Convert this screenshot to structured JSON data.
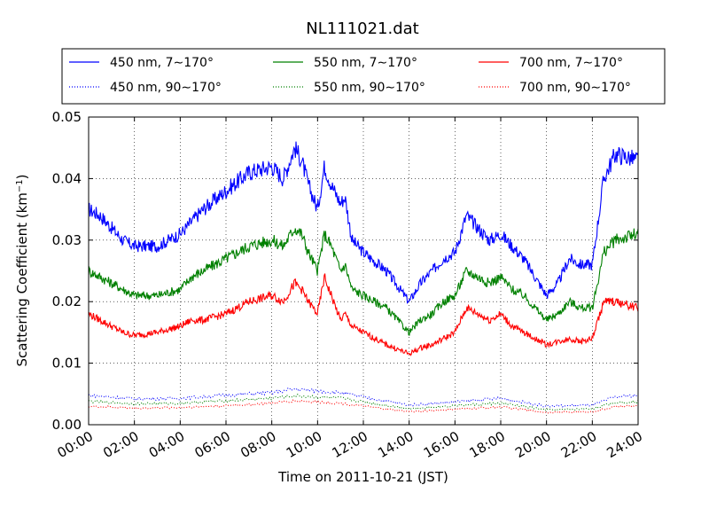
{
  "chart_data": {
    "type": "line",
    "title": "NL111021.dat",
    "xlabel": "Time on 2011-10-21 (JST)",
    "ylabel": "Scattering Coefficient (km",
    "ylabel_sup": "−1",
    "ylabel_end": ")",
    "xlim": [
      0,
      24
    ],
    "ylim": [
      0,
      0.05
    ],
    "x_ticks": [
      0,
      2,
      4,
      6,
      8,
      10,
      12,
      14,
      16,
      18,
      20,
      22,
      24
    ],
    "x_tick_labels": [
      "00:00",
      "02:00",
      "04:00",
      "06:00",
      "08:00",
      "10:00",
      "12:00",
      "14:00",
      "16:00",
      "18:00",
      "20:00",
      "22:00",
      "24:00"
    ],
    "y_ticks": [
      0,
      0.01,
      0.02,
      0.03,
      0.04,
      0.05
    ],
    "y_tick_labels": [
      "0.00",
      "0.01",
      "0.02",
      "0.03",
      "0.04",
      "0.05"
    ],
    "grid": true,
    "legend_placement": "top, above plot, 3 columns",
    "series": [
      {
        "name": "450 nm, 7∼170°",
        "color": "#0000ff",
        "style": "solid",
        "x": [
          0,
          0.5,
          1,
          1.5,
          2,
          3,
          4,
          4.5,
          5,
          6,
          7,
          8,
          8.5,
          9,
          9.3,
          9.6,
          10,
          10.3,
          10.6,
          11,
          11.2,
          11.5,
          12,
          13,
          14,
          14.5,
          15,
          15.5,
          16,
          16.5,
          17,
          17.5,
          18,
          18.5,
          19,
          20,
          20.5,
          21,
          21.5,
          22,
          22.5,
          23,
          24
        ],
        "y": [
          0.035,
          0.034,
          0.032,
          0.03,
          0.029,
          0.029,
          0.031,
          0.033,
          0.035,
          0.038,
          0.041,
          0.042,
          0.04,
          0.045,
          0.043,
          0.039,
          0.035,
          0.042,
          0.039,
          0.036,
          0.037,
          0.03,
          0.028,
          0.025,
          0.02,
          0.023,
          0.025,
          0.027,
          0.028,
          0.034,
          0.032,
          0.03,
          0.031,
          0.029,
          0.027,
          0.021,
          0.023,
          0.027,
          0.026,
          0.026,
          0.04,
          0.044,
          0.043
        ]
      },
      {
        "name": "550 nm, 7∼170°",
        "color": "#008000",
        "style": "solid",
        "x": [
          0,
          0.5,
          1,
          1.5,
          2,
          3,
          4,
          4.5,
          5,
          6,
          7,
          8,
          8.5,
          9,
          9.3,
          9.6,
          10,
          10.3,
          10.6,
          11,
          11.2,
          11.5,
          12,
          13,
          14,
          14.5,
          15,
          15.5,
          16,
          16.5,
          17,
          17.5,
          18,
          18.5,
          19,
          20,
          20.5,
          21,
          21.5,
          22,
          22.5,
          23,
          24
        ],
        "y": [
          0.025,
          0.024,
          0.023,
          0.022,
          0.021,
          0.021,
          0.022,
          0.024,
          0.025,
          0.027,
          0.029,
          0.03,
          0.029,
          0.032,
          0.031,
          0.028,
          0.025,
          0.031,
          0.029,
          0.025,
          0.026,
          0.022,
          0.021,
          0.019,
          0.015,
          0.017,
          0.018,
          0.02,
          0.021,
          0.025,
          0.024,
          0.023,
          0.024,
          0.022,
          0.021,
          0.017,
          0.018,
          0.02,
          0.019,
          0.019,
          0.028,
          0.03,
          0.031
        ]
      },
      {
        "name": "700 nm, 7∼170°",
        "color": "#ff0000",
        "style": "solid",
        "x": [
          0,
          0.5,
          1,
          1.5,
          2,
          3,
          4,
          4.5,
          5,
          6,
          7,
          8,
          8.5,
          9,
          9.3,
          9.6,
          10,
          10.3,
          10.6,
          11,
          11.2,
          11.5,
          12,
          13,
          14,
          14.5,
          15,
          15.5,
          16,
          16.5,
          17,
          17.5,
          18,
          18.5,
          19,
          20,
          20.5,
          21,
          21.5,
          22,
          22.5,
          23,
          24
        ],
        "y": [
          0.018,
          0.017,
          0.016,
          0.015,
          0.0145,
          0.015,
          0.016,
          0.017,
          0.017,
          0.018,
          0.02,
          0.021,
          0.02,
          0.023,
          0.022,
          0.02,
          0.018,
          0.024,
          0.021,
          0.017,
          0.018,
          0.016,
          0.015,
          0.013,
          0.0115,
          0.0125,
          0.013,
          0.014,
          0.015,
          0.019,
          0.018,
          0.017,
          0.018,
          0.016,
          0.015,
          0.013,
          0.0135,
          0.014,
          0.0135,
          0.014,
          0.02,
          0.02,
          0.019
        ]
      },
      {
        "name": "450 nm, 90∼170°",
        "color": "#0000ff",
        "style": "dotted",
        "x": [
          0,
          2,
          4,
          6,
          8,
          9,
          10,
          11,
          12,
          14,
          16,
          18,
          20,
          22,
          23,
          24
        ],
        "y": [
          0.0048,
          0.0042,
          0.0043,
          0.0048,
          0.0052,
          0.0058,
          0.0055,
          0.0052,
          0.0045,
          0.0032,
          0.0037,
          0.0043,
          0.003,
          0.0032,
          0.0045,
          0.0048
        ]
      },
      {
        "name": "550 nm, 90∼170°",
        "color": "#008000",
        "style": "dotted",
        "x": [
          0,
          2,
          4,
          6,
          8,
          9,
          10,
          11,
          12,
          14,
          16,
          18,
          20,
          22,
          23,
          24
        ],
        "y": [
          0.0038,
          0.0034,
          0.0035,
          0.0039,
          0.0043,
          0.0047,
          0.0045,
          0.0043,
          0.0037,
          0.0026,
          0.0031,
          0.0035,
          0.0024,
          0.0026,
          0.0036,
          0.0038
        ]
      },
      {
        "name": "700 nm, 90∼170°",
        "color": "#ff0000",
        "style": "dotted",
        "x": [
          0,
          2,
          4,
          6,
          8,
          9,
          10,
          11,
          12,
          14,
          16,
          18,
          20,
          22,
          23,
          24
        ],
        "y": [
          0.003,
          0.0027,
          0.0028,
          0.0031,
          0.0035,
          0.0039,
          0.0037,
          0.0035,
          0.003,
          0.0021,
          0.0025,
          0.0029,
          0.002,
          0.0021,
          0.0029,
          0.0031
        ]
      }
    ]
  }
}
